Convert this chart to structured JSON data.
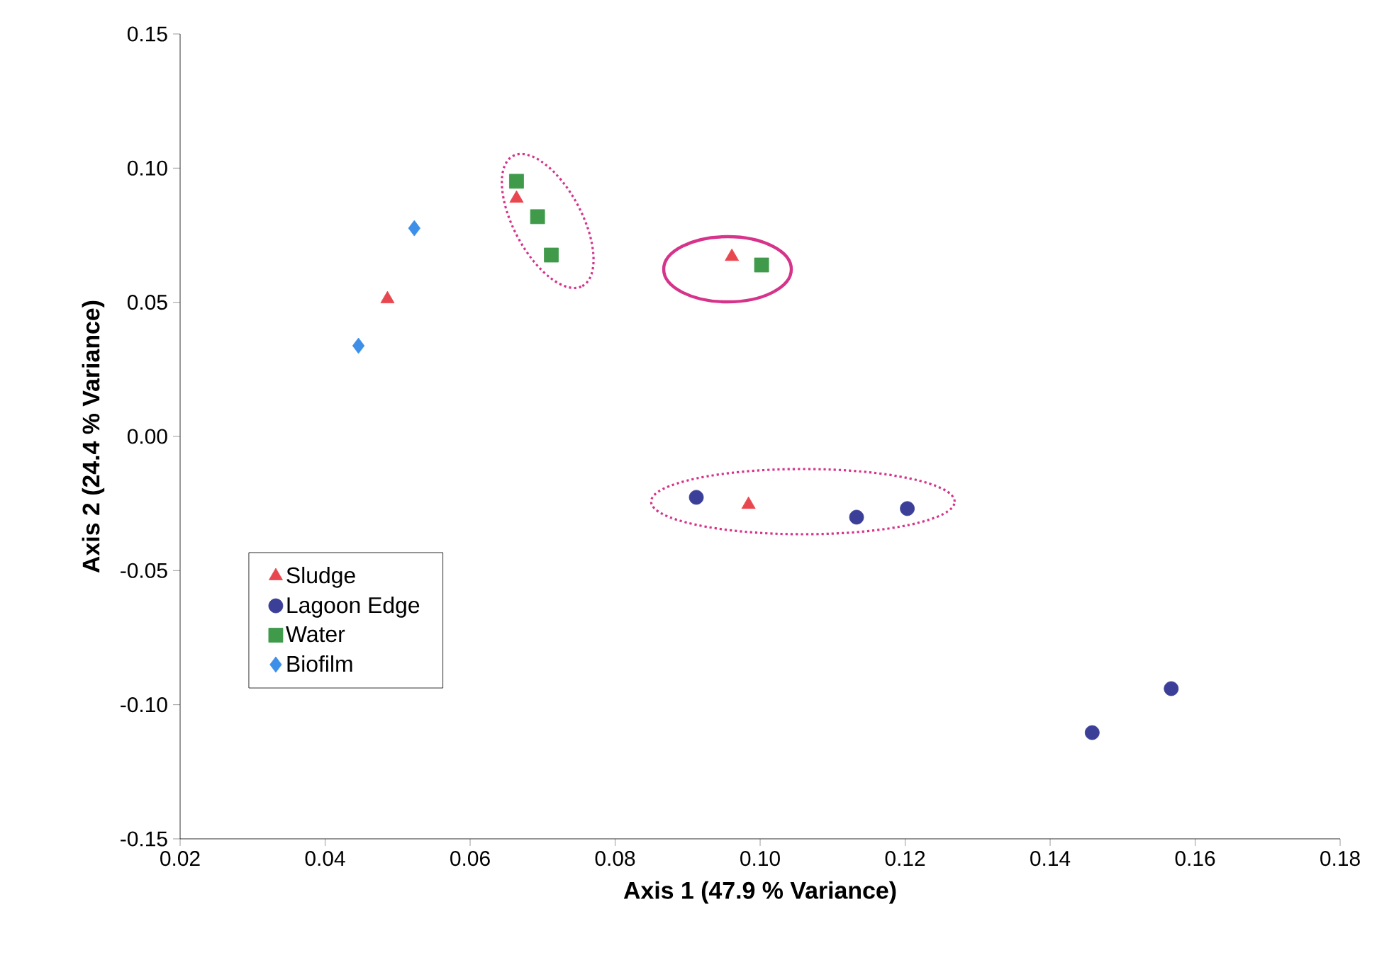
{
  "chart_data": {
    "type": "scatter",
    "xlabel": "Axis 1 (47.9 % Variance)",
    "ylabel": "Axis 2 (24.4 % Variance)",
    "series": [
      {
        "name": "Sludge",
        "color": "#e8474f",
        "marker": "triangle",
        "x": [
          0.0486,
          0.0664,
          0.0961,
          0.0984
        ],
        "values": [
          0.0512,
          0.0887,
          0.067,
          -0.0254
        ]
      },
      {
        "name": "Lagoon Edge",
        "color": "#3b3f98",
        "marker": "circle",
        "x": [
          0.0912,
          0.1133,
          0.1203,
          0.1458,
          0.1567
        ],
        "values": [
          -0.0227,
          -0.0301,
          -0.0269,
          -0.1104,
          -0.094
        ]
      },
      {
        "name": "Water",
        "color": "#3f9a4a",
        "marker": "square",
        "x": [
          0.0664,
          0.0693,
          0.0712,
          0.1002
        ],
        "values": [
          0.0951,
          0.0819,
          0.0676,
          0.0639
        ]
      },
      {
        "name": "Biofilm",
        "color": "#3d8fe8",
        "marker": "diamond",
        "x": [
          0.0523,
          0.0446
        ],
        "values": [
          0.0776,
          0.0338
        ]
      }
    ],
    "xlim": [
      0.02,
      0.18
    ],
    "xticks": [
      {
        "value": 0.02,
        "label": "0.02"
      },
      {
        "value": 0.04,
        "label": "0.04"
      },
      {
        "value": 0.06,
        "label": "0.06"
      },
      {
        "value": 0.08,
        "label": "0.08"
      },
      {
        "value": 0.1,
        "label": "0.10"
      },
      {
        "value": 0.12,
        "label": "0.12"
      },
      {
        "value": 0.14,
        "label": "0.14"
      },
      {
        "value": 0.16,
        "label": "0.16"
      },
      {
        "value": 0.18,
        "label": "0.18"
      }
    ],
    "ylim": [
      -0.15,
      0.15
    ],
    "yticks": [
      {
        "value": -0.15,
        "label": "-0.15"
      },
      {
        "value": -0.1,
        "label": "-0.10"
      },
      {
        "value": -0.05,
        "label": "-0.05"
      },
      {
        "value": 0,
        "label": "0.00"
      },
      {
        "value": 0.05,
        "label": "0.05"
      },
      {
        "value": 0.1,
        "label": "0.10"
      },
      {
        "value": 0.15,
        "label": "0.15"
      }
    ],
    "grid": false,
    "legend": "bottom left"
  }
}
